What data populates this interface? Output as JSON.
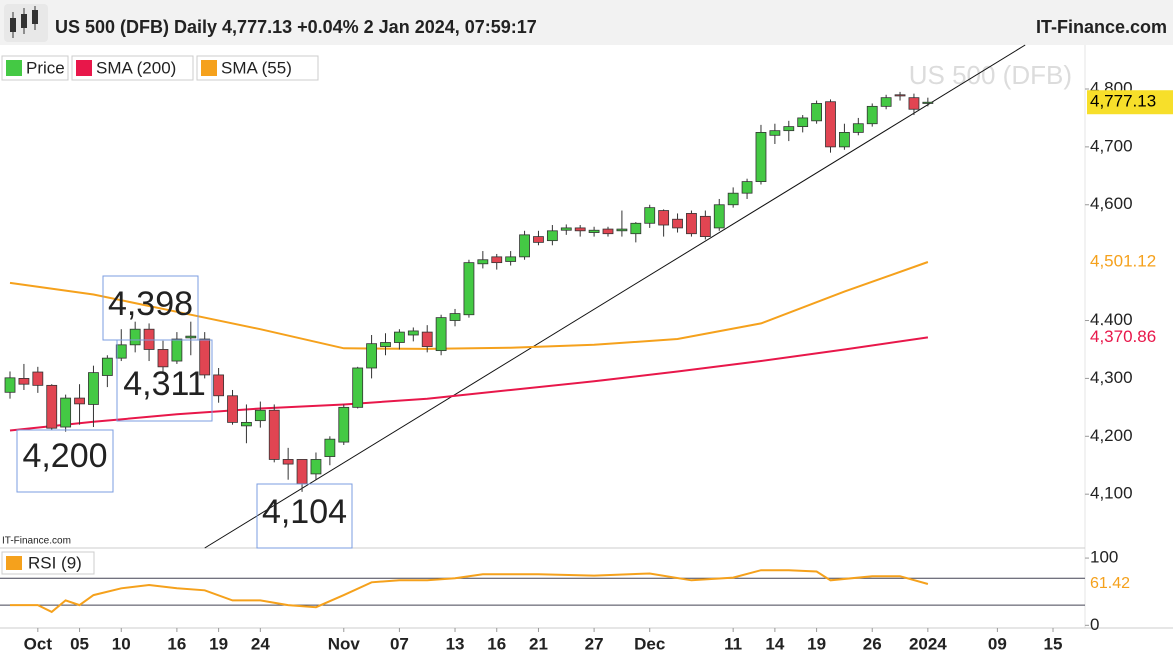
{
  "chart_data": {
    "type": "candlestick",
    "title": "US 500 (DFB) Daily 4,777.13 +0.04% 2 Jan 2024, 07:59:17",
    "brand": "IT-Finance.com",
    "watermark": "US 500 (DFB)",
    "source": "IT-Finance.com",
    "price_name": "Price",
    "up_color": "#44c944",
    "down_color": "#e14552",
    "open": [
      4276,
      4300,
      4311,
      4288,
      4216,
      4266,
      4255,
      4305,
      4335,
      4358,
      4385,
      4350,
      4330,
      4370,
      4368,
      4306,
      4270,
      4218,
      4227,
      4245,
      4160,
      4160,
      4135,
      4165,
      4190,
      4250,
      4318,
      4355,
      4362,
      4375,
      4380,
      4348,
      4400,
      4410,
      4498,
      4510,
      4502,
      4510,
      4545,
      4538,
      4556,
      4560,
      4552,
      4558,
      4555,
      4550,
      4568,
      4590,
      4575,
      4585,
      4580,
      4560,
      4600,
      4620,
      4640,
      4720,
      4728,
      4735,
      4745,
      4778,
      4700,
      4725,
      4740,
      4770,
      4790,
      4785,
      4775
    ],
    "high": [
      4312,
      4325,
      4320,
      4290,
      4272,
      4290,
      4322,
      4340,
      4385,
      4398,
      4395,
      4365,
      4380,
      4398,
      4380,
      4318,
      4280,
      4255,
      4260,
      4255,
      4180,
      4160,
      4172,
      4200,
      4255,
      4320,
      4375,
      4378,
      4385,
      4388,
      4392,
      4410,
      4420,
      4505,
      4520,
      4515,
      4520,
      4555,
      4555,
      4565,
      4566,
      4565,
      4562,
      4562,
      4590,
      4570,
      4600,
      4592,
      4585,
      4590,
      4590,
      4610,
      4630,
      4645,
      4738,
      4740,
      4745,
      4755,
      4780,
      4782,
      4740,
      4750,
      4775,
      4790,
      4795,
      4792,
      4785
    ],
    "low": [
      4265,
      4280,
      4275,
      4210,
      4208,
      4220,
      4216,
      4285,
      4330,
      4345,
      4330,
      4311,
      4325,
      4340,
      4300,
      4258,
      4220,
      4188,
      4215,
      4155,
      4125,
      4104,
      4125,
      4150,
      4185,
      4248,
      4300,
      4340,
      4350,
      4364,
      4345,
      4340,
      4390,
      4405,
      4490,
      4488,
      4495,
      4505,
      4530,
      4530,
      4548,
      4545,
      4545,
      4545,
      4545,
      4535,
      4560,
      4545,
      4552,
      4545,
      4540,
      4555,
      4595,
      4610,
      4635,
      4705,
      4710,
      4725,
      4740,
      4690,
      4695,
      4720,
      4735,
      4765,
      4780,
      4755,
      4770
    ],
    "close": [
      4301,
      4290,
      4288,
      4214,
      4266,
      4256,
      4310,
      4335,
      4358,
      4385,
      4350,
      4320,
      4368,
      4373,
      4306,
      4270,
      4224,
      4224,
      4245,
      4160,
      4152,
      4118,
      4160,
      4195,
      4250,
      4318,
      4360,
      4362,
      4380,
      4382,
      4355,
      4405,
      4412,
      4500,
      4505,
      4500,
      4510,
      4548,
      4535,
      4555,
      4560,
      4555,
      4556,
      4550,
      4558,
      4568,
      4595,
      4565,
      4560,
      4550,
      4545,
      4600,
      4620,
      4640,
      4725,
      4728,
      4735,
      4750,
      4775,
      4700,
      4725,
      4740,
      4770,
      4785,
      4788,
      4765,
      4777.13
    ],
    "price_label": {
      "value": 4777.13,
      "label": "4,777.13"
    },
    "series": [
      {
        "name": "SMA (200)",
        "color": "#e8174a",
        "x": [
          0,
          6,
          12,
          18,
          24,
          30,
          36,
          42,
          48,
          54,
          60,
          66
        ],
        "values": [
          4210,
          4225,
          4238,
          4248,
          4255,
          4265,
          4280,
          4295,
          4312,
          4330,
          4350,
          4370.86
        ],
        "end_label": {
          "value": 4370.86,
          "label": "4,370.86"
        }
      },
      {
        "name": "SMA (55)",
        "color": "#f5a11c",
        "x": [
          0,
          6,
          12,
          18,
          24,
          30,
          36,
          42,
          48,
          54,
          60,
          66
        ],
        "values": [
          4465,
          4445,
          4415,
          4385,
          4352,
          4351,
          4353,
          4358,
          4368,
          4395,
          4450,
          4501.12
        ],
        "end_label": {
          "value": 4501.12,
          "label": "4,501.12"
        }
      }
    ],
    "trendline": {
      "x": [
        14,
        73
      ],
      "values": [
        4007,
        4876
      ]
    },
    "annotations": [
      "4,398",
      "4,311",
      "4,200",
      "4,104"
    ],
    "ylim": [
      4007,
      4876
    ],
    "yticks": [
      {
        "value": 4100,
        "label": "4,100"
      },
      {
        "value": 4200,
        "label": "4,200"
      },
      {
        "value": 4300,
        "label": "4,300"
      },
      {
        "value": 4400,
        "label": "4,400"
      },
      {
        "value": 4600,
        "label": "4,600"
      },
      {
        "value": 4700,
        "label": "4,700"
      },
      {
        "value": 4800,
        "label": "4,800"
      }
    ],
    "xlim": [
      -0.72,
      77.3
    ],
    "xticks": [
      {
        "value": 2,
        "label": "Oct"
      },
      {
        "value": 5,
        "label": "05"
      },
      {
        "value": 8,
        "label": "10"
      },
      {
        "value": 12,
        "label": "16"
      },
      {
        "value": 15,
        "label": "19"
      },
      {
        "value": 18,
        "label": "24"
      },
      {
        "value": 24,
        "label": "Nov"
      },
      {
        "value": 28,
        "label": "07"
      },
      {
        "value": 32,
        "label": "13"
      },
      {
        "value": 35,
        "label": "16"
      },
      {
        "value": 38,
        "label": "21"
      },
      {
        "value": 42,
        "label": "27"
      },
      {
        "value": 46,
        "label": "Dec"
      },
      {
        "value": 52,
        "label": "11"
      },
      {
        "value": 55,
        "label": "14"
      },
      {
        "value": 58,
        "label": "19"
      },
      {
        "value": 62,
        "label": "26"
      },
      {
        "value": 66,
        "label": "2024"
      },
      {
        "value": 71,
        "label": "09"
      },
      {
        "value": 75,
        "label": "15"
      }
    ],
    "rsi": {
      "name": "RSI (9)",
      "color": "#f5a11c",
      "x": [
        0,
        2,
        3,
        4,
        5,
        6,
        8,
        10,
        12,
        14,
        16,
        18,
        20,
        22,
        24,
        26,
        28,
        30,
        32,
        34,
        38,
        42,
        46,
        49,
        52,
        54,
        56,
        58,
        59,
        62,
        64,
        66
      ],
      "values": [
        30,
        30,
        20,
        37,
        30,
        45,
        55,
        60,
        55,
        52,
        37,
        37,
        30,
        27,
        45,
        64,
        67,
        67,
        70,
        76,
        76,
        74,
        77,
        67,
        71,
        82,
        82,
        80,
        67,
        73,
        73,
        61.42
      ],
      "end_label": {
        "value": 61.42,
        "label": "61.42"
      },
      "ylim": [
        -4,
        112
      ],
      "yticks": [
        0,
        100
      ],
      "levels": [
        30,
        70
      ]
    }
  }
}
